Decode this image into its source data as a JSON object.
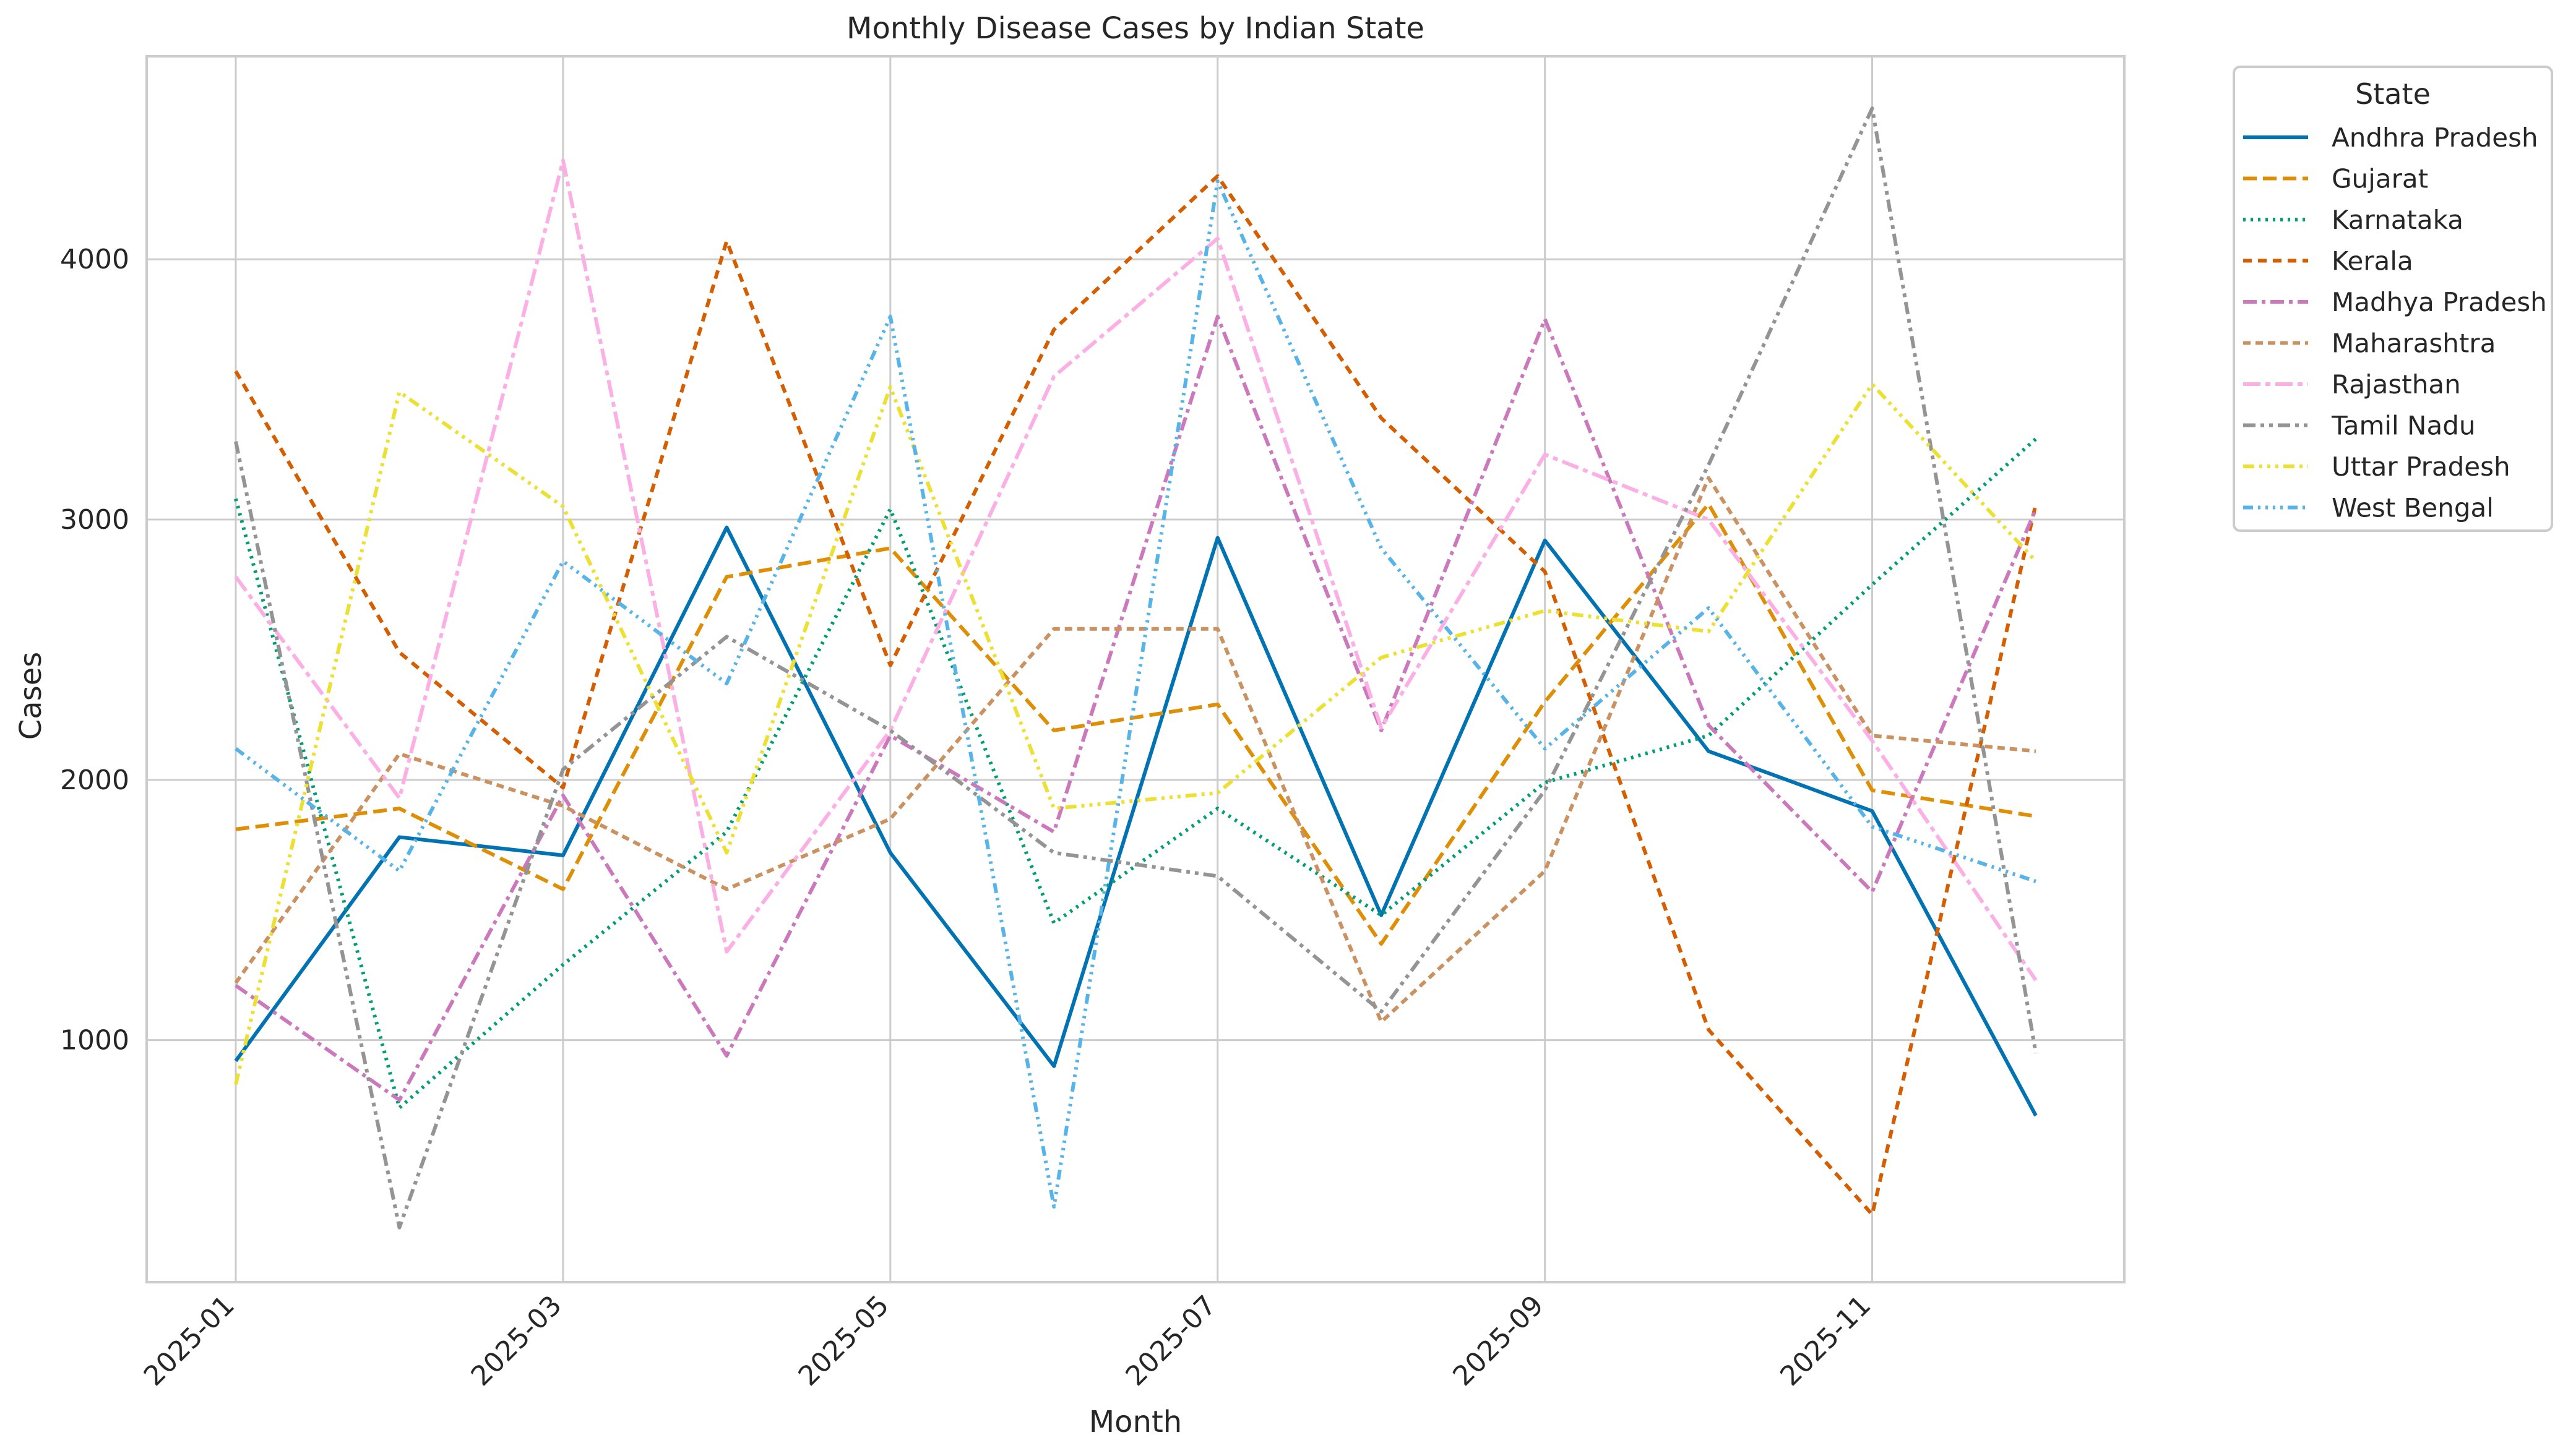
{
  "chart_data": {
    "type": "line",
    "title": "Monthly Disease Cases by Indian State",
    "xlabel": "Month",
    "ylabel": "Cases",
    "x": [
      "2025-01",
      "2025-02",
      "2025-03",
      "2025-04",
      "2025-05",
      "2025-06",
      "2025-07",
      "2025-08",
      "2025-09",
      "2025-10",
      "2025-11",
      "2025-12"
    ],
    "x_tick_labels": [
      "2025-01",
      "2025-03",
      "2025-05",
      "2025-07",
      "2025-09",
      "2025-11"
    ],
    "y_ticks": [
      1000,
      2000,
      3000,
      4000
    ],
    "ylim": [
      70,
      4780
    ],
    "grid": true,
    "legend": {
      "title": "State",
      "placement": "outside-top-right"
    },
    "series": [
      {
        "name": "Andhra Pradesh",
        "color": "#0173b2",
        "dash": "solid",
        "values": [
          920,
          1780,
          1710,
          2970,
          1720,
          900,
          2930,
          1480,
          2920,
          2110,
          1880,
          710
        ]
      },
      {
        "name": "Gujarat",
        "color": "#de8f05",
        "dash": "dashed",
        "values": [
          1810,
          1890,
          1580,
          2780,
          2890,
          2190,
          2290,
          1370,
          2300,
          3060,
          1960,
          1860
        ]
      },
      {
        "name": "Karnataka",
        "color": "#029e73",
        "dash": "dotted",
        "values": [
          3080,
          740,
          1290,
          1800,
          3040,
          1450,
          1890,
          1480,
          1990,
          2170,
          2750,
          3310
        ]
      },
      {
        "name": "Kerala",
        "color": "#d55e00",
        "dash": "short-dash",
        "values": [
          3570,
          2490,
          1970,
          4070,
          2440,
          3730,
          4320,
          3390,
          2800,
          1040,
          330,
          3060
        ]
      },
      {
        "name": "Madhya Pradesh",
        "color": "#cc78bc",
        "dash": "dash-dot",
        "values": [
          1210,
          770,
          1940,
          940,
          2170,
          1800,
          3780,
          2190,
          3770,
          2210,
          1570,
          3040
        ]
      },
      {
        "name": "Maharashtra",
        "color": "#ca9161",
        "dash": "dense-dash",
        "values": [
          1220,
          2100,
          1900,
          1580,
          1850,
          2580,
          2580,
          1070,
          1650,
          3160,
          2170,
          2110
        ]
      },
      {
        "name": "Rajasthan",
        "color": "#fbafe4",
        "dash": "long-dash-dot",
        "values": [
          2780,
          1930,
          4380,
          1340,
          2190,
          3550,
          4080,
          2200,
          3250,
          3000,
          2150,
          1230
        ]
      },
      {
        "name": "Tamil Nadu",
        "color": "#949494",
        "dash": "dash-dot-dot",
        "values": [
          3300,
          280,
          2040,
          2550,
          2190,
          1720,
          1630,
          1110,
          1960,
          3210,
          4580,
          950
        ]
      },
      {
        "name": "Uttar Pradesh",
        "color": "#ece133",
        "dash": "dash-dot-dot-dot",
        "values": [
          830,
          3490,
          3050,
          1720,
          3510,
          1890,
          1950,
          2470,
          2650,
          2570,
          3520,
          2840
        ]
      },
      {
        "name": "West Bengal",
        "color": "#56b4e9",
        "dash": "dash-dot-dot-dot-dot",
        "values": [
          2120,
          1650,
          2840,
          2370,
          3780,
          360,
          4300,
          2890,
          2120,
          2660,
          1820,
          1610
        ]
      }
    ]
  }
}
